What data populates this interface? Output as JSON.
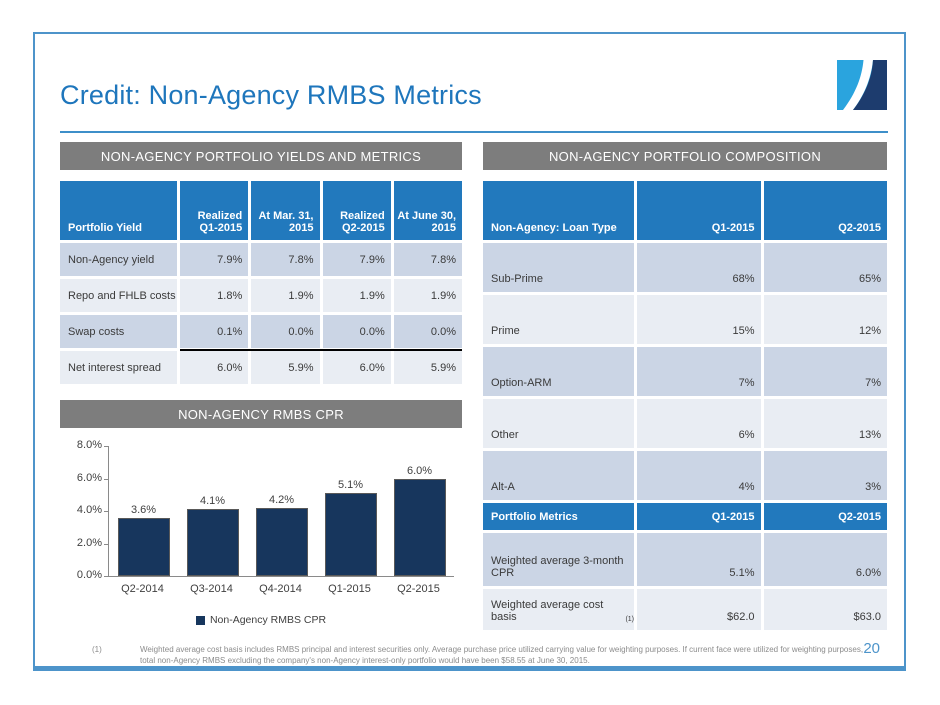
{
  "slide": {
    "title": "Credit: Non-Agency RMBS Metrics",
    "page_number": "20"
  },
  "colors": {
    "accent_blue": "#1e76bc",
    "table_header_blue": "#2279bd",
    "section_bar_gray": "#7d7d7d",
    "row_shade_dark": "#cbd5e5",
    "row_shade_light": "#e9edf3",
    "bar_navy": "#17365d",
    "border_blue": "#4d94ca",
    "logo_light_blue": "#2aa4de",
    "logo_navy": "#1d3c6e"
  },
  "left_panel": {
    "section_header": "NON-AGENCY PORTFOLIO YIELDS AND METRICS",
    "yields_table": {
      "col_header": "Portfolio Yield",
      "headers": [
        "Realized\nQ1-2015",
        "At Mar. 31,\n2015",
        "Realized\nQ2-2015",
        "At June 30,\n2015"
      ],
      "rows": [
        {
          "label": "Non-Agency yield",
          "values": [
            "7.9%",
            "7.8%",
            "7.9%",
            "7.8%"
          ]
        },
        {
          "label": "Repo and FHLB costs",
          "values": [
            "1.8%",
            "1.9%",
            "1.9%",
            "1.9%"
          ]
        },
        {
          "label": "Swap costs",
          "values": [
            "0.1%",
            "0.0%",
            "0.0%",
            "0.0%"
          ]
        },
        {
          "label": "Net interest spread",
          "values": [
            "6.0%",
            "5.9%",
            "6.0%",
            "5.9%"
          ]
        }
      ]
    },
    "chart_header": "NON-AGENCY RMBS CPR"
  },
  "chart_data": {
    "type": "bar",
    "title": "NON-AGENCY RMBS CPR",
    "categories": [
      "Q2-2014",
      "Q3-2014",
      "Q4-2014",
      "Q1-2015",
      "Q2-2015"
    ],
    "values": [
      3.6,
      4.1,
      4.2,
      5.1,
      6.0
    ],
    "labels": [
      "3.6%",
      "4.1%",
      "4.2%",
      "5.1%",
      "6.0%"
    ],
    "ylim": [
      0,
      8
    ],
    "yticks": [
      "0.0%",
      "2.0%",
      "4.0%",
      "6.0%",
      "8.0%"
    ],
    "legend": "Non-Agency RMBS CPR",
    "legend_position": "bottom",
    "grid": false,
    "bar_color": "#17365d"
  },
  "right_panel": {
    "section_header": "NON-AGENCY PORTFOLIO COMPOSITION",
    "composition_table": {
      "col_header": "Non-Agency: Loan Type",
      "headers": [
        "Q1-2015",
        "Q2-2015"
      ],
      "rows": [
        {
          "label": "Sub-Prime",
          "values": [
            "68%",
            "65%"
          ]
        },
        {
          "label": "Prime",
          "values": [
            "15%",
            "12%"
          ]
        },
        {
          "label": "Option-ARM",
          "values": [
            "7%",
            "7%"
          ]
        },
        {
          "label": "Other",
          "values": [
            "6%",
            "13%"
          ]
        },
        {
          "label": "Alt-A",
          "values": [
            "4%",
            "3%"
          ]
        }
      ]
    },
    "metrics_table": {
      "col_header": "Portfolio Metrics",
      "headers": [
        "Q1-2015",
        "Q2-2015"
      ],
      "rows": [
        {
          "label": "Weighted average 3-month CPR",
          "sup": "",
          "values": [
            "5.1%",
            "6.0%"
          ]
        },
        {
          "label": "Weighted average cost basis",
          "sup": "(1)",
          "values": [
            "$62.0",
            "$63.0"
          ]
        }
      ]
    }
  },
  "footnote": {
    "marker": "(1)",
    "text": "Weighted average cost basis includes RMBS principal and interest securities only.  Average purchase price utilized carrying value for weighting purposes.  If current face were utilized for weighting purposes, total non-Agency RMBS excluding the company's non-Agency interest-only portfolio would have been $58.55 at June 30, 2015."
  }
}
